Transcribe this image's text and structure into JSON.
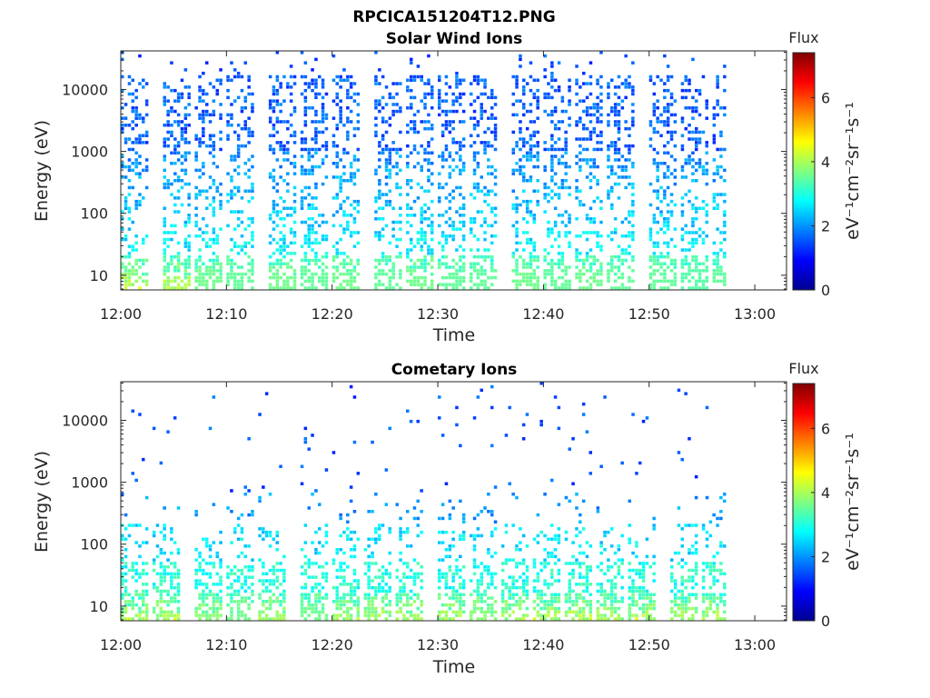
{
  "figure_title": "RPCICA151204T12.PNG",
  "chart_data": [
    {
      "type": "heatmap",
      "title": "Solar Wind Ions",
      "xlabel": "Time",
      "ylabel": "Energy (eV)",
      "x_ticks": [
        "12:00",
        "12:10",
        "12:20",
        "12:30",
        "12:40",
        "12:50",
        "13:00"
      ],
      "xlim": [
        "12:00",
        "13:03"
      ],
      "y_scale": "log",
      "y_ticks": [
        "10",
        "100",
        "1000",
        "10000"
      ],
      "ylim": [
        5.8,
        42000
      ],
      "data_extent": [
        "12:00",
        "12:57"
      ],
      "colorbar": {
        "label": "Flux",
        "unit": "eV⁻¹cm⁻²sr⁻¹s⁻¹",
        "range": [
          0,
          7.4
        ],
        "ticks": [
          "0",
          "2",
          "4",
          "6"
        ],
        "colormap": "jet"
      },
      "scans": [
        {
          "t": "12:00",
          "max_flux": 4.8
        },
        {
          "t": "12:04",
          "max_flux": 4.9
        },
        {
          "t": "12:07",
          "max_flux": 3.6
        },
        {
          "t": "12:10",
          "max_flux": 3.5
        },
        {
          "t": "12:14",
          "max_flux": 3.6
        },
        {
          "t": "12:17",
          "max_flux": 3.5
        },
        {
          "t": "12:20",
          "max_flux": 3.6
        },
        {
          "t": "12:24",
          "max_flux": 3.5
        },
        {
          "t": "12:27",
          "max_flux": 3.6
        },
        {
          "t": "12:30",
          "max_flux": 3.5
        },
        {
          "t": "12:33",
          "max_flux": 3.5
        },
        {
          "t": "12:37",
          "max_flux": 3.6
        },
        {
          "t": "12:40",
          "max_flux": 3.5
        },
        {
          "t": "12:43",
          "max_flux": 3.6
        },
        {
          "t": "12:46",
          "max_flux": 3.5
        },
        {
          "t": "12:50",
          "max_flux": 3.5
        },
        {
          "t": "12:53",
          "max_flux": 3.4
        },
        {
          "t": "12:56",
          "max_flux": 3.5
        }
      ]
    },
    {
      "type": "heatmap",
      "title": "Cometary Ions",
      "xlabel": "Time",
      "ylabel": "Energy (eV)",
      "x_ticks": [
        "12:00",
        "12:10",
        "12:20",
        "12:30",
        "12:40",
        "12:50",
        "13:00"
      ],
      "xlim": [
        "12:00",
        "13:03"
      ],
      "y_scale": "log",
      "y_ticks": [
        "10",
        "100",
        "1000",
        "10000"
      ],
      "ylim": [
        5.8,
        42000
      ],
      "data_extent": [
        "12:00",
        "12:57"
      ],
      "colorbar": {
        "label": "Flux",
        "unit": "eV⁻¹cm⁻²sr⁻¹s⁻¹",
        "range": [
          0,
          7.4
        ],
        "ticks": [
          "0",
          "2",
          "4",
          "6"
        ],
        "colormap": "jet"
      },
      "scans": [
        {
          "t": "12:00",
          "max_flux": 6.5
        },
        {
          "t": "12:03",
          "max_flux": 6.6
        },
        {
          "t": "12:07",
          "max_flux": 3.8
        },
        {
          "t": "12:10",
          "max_flux": 3.6
        },
        {
          "t": "12:13",
          "max_flux": 4.0
        },
        {
          "t": "12:17",
          "max_flux": 3.6
        },
        {
          "t": "12:20",
          "max_flux": 4.2
        },
        {
          "t": "12:23",
          "max_flux": 4.4
        },
        {
          "t": "12:26",
          "max_flux": 4.0
        },
        {
          "t": "12:30",
          "max_flux": 4.2
        },
        {
          "t": "12:33",
          "max_flux": 3.8
        },
        {
          "t": "12:36",
          "max_flux": 4.6
        },
        {
          "t": "12:39",
          "max_flux": 4.6
        },
        {
          "t": "12:42",
          "max_flux": 4.8
        },
        {
          "t": "12:45",
          "max_flux": 4.6
        },
        {
          "t": "12:48",
          "max_flux": 4.5
        },
        {
          "t": "12:52",
          "max_flux": 4.0
        },
        {
          "t": "12:55",
          "max_flux": 4.5
        }
      ]
    }
  ]
}
